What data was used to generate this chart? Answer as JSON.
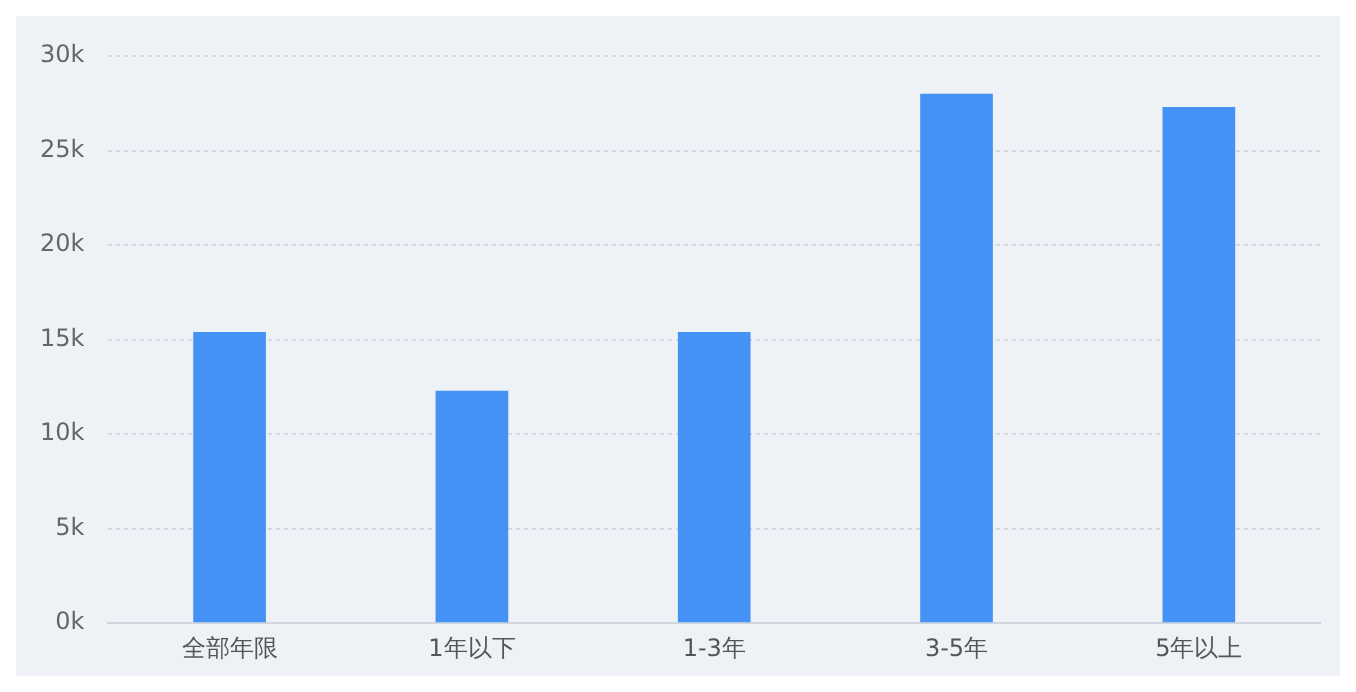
{
  "chart_data": {
    "type": "bar",
    "categories": [
      "全部年限",
      "1年以下",
      "1-3年",
      "3-5年",
      "5年以上"
    ],
    "values": [
      15400,
      12300,
      15400,
      28000,
      27300
    ],
    "color": "#4592f6",
    "ylim": [
      0,
      30000
    ],
    "yticks": [
      {
        "value": 0,
        "label": "0k"
      },
      {
        "value": 5000,
        "label": "5k"
      },
      {
        "value": 10000,
        "label": "10k"
      },
      {
        "value": 15000,
        "label": "15k"
      },
      {
        "value": 20000,
        "label": "20k"
      },
      {
        "value": 25000,
        "label": "25k"
      },
      {
        "value": 30000,
        "label": "30k"
      }
    ],
    "grid": "y"
  }
}
